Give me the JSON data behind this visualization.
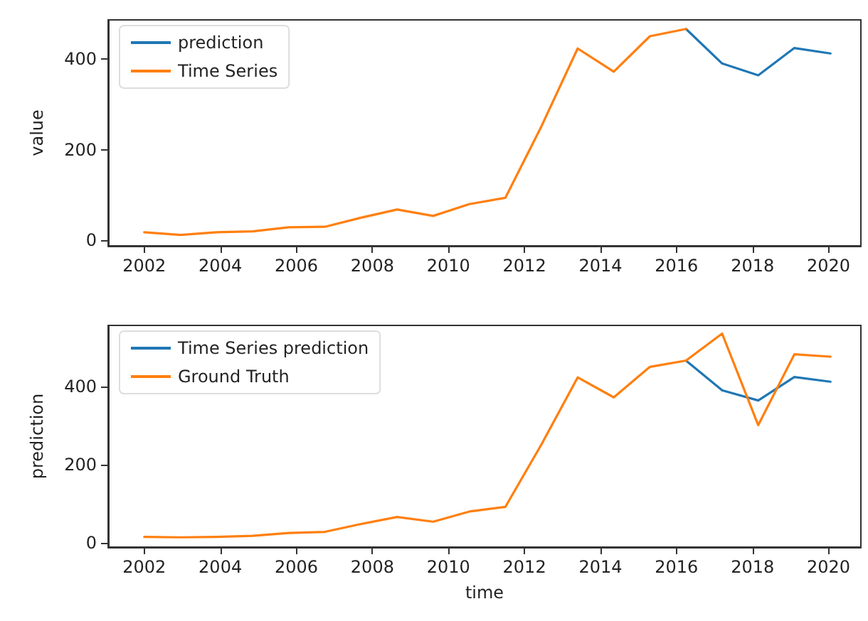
{
  "chart_data": [
    {
      "type": "line",
      "ylabel": "value",
      "legend": "top left",
      "grid": false,
      "xlim": [
        2001.05,
        2020.85
      ],
      "xticks": [
        2002,
        2004,
        2006,
        2008,
        2010,
        2012,
        2014,
        2016,
        2018,
        2020
      ],
      "ylim": [
        -12,
        486
      ],
      "yticks": [
        0,
        200,
        400
      ],
      "series": [
        {
          "name": "prediction",
          "color": "#1f77b4",
          "x": [
            2016.25,
            2017.2,
            2018.15,
            2019.1,
            2020.05
          ],
          "values": [
            466,
            390,
            364,
            424,
            412
          ]
        },
        {
          "name": "Time Series",
          "color": "#ff7f0e",
          "x": [
            2002,
            2002.95,
            2003.9,
            2004.85,
            2005.8,
            2006.75,
            2007.7,
            2008.65,
            2009.6,
            2010.55,
            2011.5,
            2012.45,
            2013.4,
            2014.35,
            2015.3,
            2016.25
          ],
          "values": [
            18,
            12,
            18,
            20,
            29,
            30,
            50,
            68,
            54,
            80,
            94,
            252,
            423,
            372,
            450,
            466
          ]
        }
      ]
    },
    {
      "type": "line",
      "ylabel": "prediction",
      "xlabel": "time",
      "legend": "top left",
      "grid": false,
      "xlim": [
        2001.05,
        2020.85
      ],
      "xticks": [
        2002,
        2004,
        2006,
        2008,
        2010,
        2012,
        2014,
        2016,
        2018,
        2020
      ],
      "ylim": [
        -11,
        556
      ],
      "yticks": [
        0,
        200,
        400
      ],
      "series": [
        {
          "name": "Time Series prediction",
          "color": "#1f77b4",
          "x": [
            2016.25,
            2017.2,
            2018.15,
            2019.1,
            2020.05
          ],
          "values": [
            466,
            390,
            364,
            424,
            412
          ]
        },
        {
          "name": "Ground Truth",
          "color": "#ff7f0e",
          "x": [
            2002,
            2002.95,
            2003.9,
            2004.85,
            2005.8,
            2006.75,
            2007.7,
            2008.65,
            2009.6,
            2010.55,
            2011.5,
            2012.45,
            2013.4,
            2014.35,
            2015.3,
            2016.25,
            2017.2,
            2018.15,
            2019.1,
            2020.05
          ],
          "values": [
            15,
            14,
            15,
            18,
            25,
            28,
            48,
            66,
            54,
            80,
            92,
            252,
            423,
            372,
            450,
            466,
            535,
            301,
            482,
            476
          ]
        }
      ]
    }
  ]
}
